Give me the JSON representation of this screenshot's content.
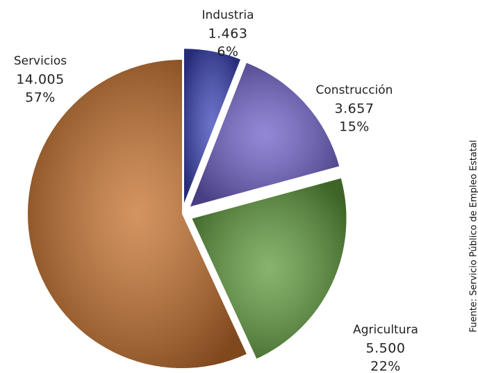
{
  "chart_data": {
    "type": "pie",
    "categories": [
      "Industria",
      "Construcción",
      "Agricultura",
      "Servicios"
    ],
    "values": [
      1463,
      3657,
      5500,
      14005
    ],
    "value_labels": [
      "1.463",
      "3.657",
      "5.500",
      "14.005"
    ],
    "percent_labels": [
      "6%",
      "15%",
      "22%",
      "57%"
    ],
    "colors": [
      "#3b44b8",
      "#6e60c9",
      "#5f9a3c",
      "#c5702c"
    ],
    "source": "Fuente: Servicio Público de Empleo Estatal"
  }
}
